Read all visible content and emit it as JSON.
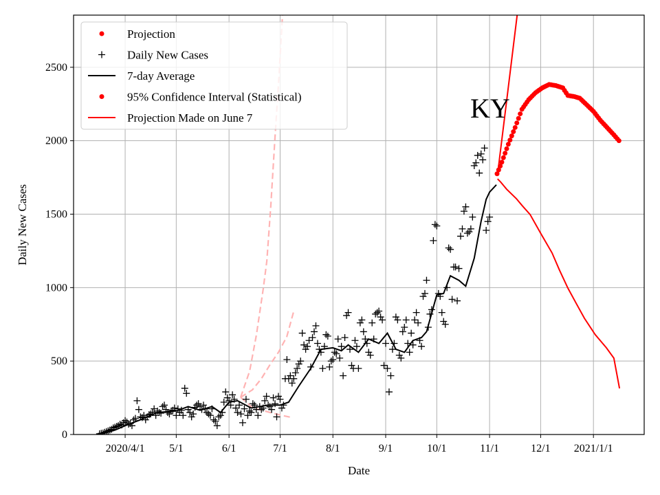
{
  "chart_data": {
    "type": "scatter",
    "title": "",
    "state_label": "KY",
    "xlabel": "Date",
    "ylabel": "Daily New Cases",
    "x_units": "days since 2020-01-01",
    "xlim": [
      60.7,
      395.8
    ],
    "ylim": [
      0,
      2855
    ],
    "grid": true,
    "legend_placement": "top-left",
    "x_ticks": [
      {
        "label": "2020/4/1",
        "day": 91
      },
      {
        "label": "5/1",
        "day": 121
      },
      {
        "label": "6/1",
        "day": 152
      },
      {
        "label": "7/1",
        "day": 182
      },
      {
        "label": "8/1",
        "day": 213
      },
      {
        "label": "9/1",
        "day": 244
      },
      {
        "label": "10/1",
        "day": 274
      },
      {
        "label": "11/1",
        "day": 305
      },
      {
        "label": "12/1",
        "day": 335
      },
      {
        "label": "2021/1/1",
        "day": 366
      }
    ],
    "y_ticks": [
      0,
      500,
      1000,
      1500,
      2000,
      2500
    ],
    "legend": [
      {
        "label": "Projection",
        "marker": "dot",
        "color": "#ff0000"
      },
      {
        "label": "Daily New Cases",
        "marker": "plus",
        "color": "#000000"
      },
      {
        "label": "7-day Average",
        "marker": "line",
        "color": "#000000"
      },
      {
        "label": "95% Confidence Interval (Statistical)",
        "marker": "dot",
        "color": "#ff0000"
      },
      {
        "label": "Projection Made on June 7",
        "marker": "line",
        "color": "#ff0000"
      }
    ],
    "series": [
      {
        "name": "Daily New Cases",
        "color": "#000000",
        "start_day": 76,
        "values": [
          5,
          8,
          10,
          15,
          20,
          25,
          30,
          35,
          45,
          50,
          55,
          60,
          70,
          65,
          80,
          95,
          85,
          70,
          75,
          60,
          100,
          110,
          230,
          170,
          120,
          115,
          130,
          100,
          120,
          135,
          140,
          150,
          175,
          130,
          160,
          150,
          145,
          190,
          200,
          170,
          150,
          140,
          160,
          165,
          180,
          130,
          175,
          150,
          165,
          130,
          315,
          280,
          170,
          150,
          120,
          140,
          185,
          200,
          210,
          190,
          170,
          200,
          175,
          150,
          140,
          130,
          175,
          100,
          90,
          60,
          120,
          130,
          150,
          220,
          290,
          250,
          230,
          200,
          270,
          240,
          180,
          150,
          200,
          140,
          80,
          175,
          240,
          130,
          160,
          150,
          210,
          200,
          170,
          130,
          190,
          170,
          180,
          230,
          260,
          200,
          190,
          170,
          250,
          210,
          120,
          260,
          240,
          180,
          200,
          380,
          510,
          380,
          400,
          350,
          380,
          420,
          450,
          480,
          500,
          690,
          610,
          580,
          600,
          640,
          460,
          660,
          700,
          740,
          620,
          580,
          560,
          450,
          600,
          680,
          670,
          460,
          500,
          510,
          560,
          550,
          650,
          520,
          600,
          400,
          660,
          810,
          830,
          580,
          470,
          450,
          640,
          600,
          450,
          760,
          780,
          700,
          650,
          620,
          560,
          540,
          760,
          650,
          820,
          830,
          840,
          800,
          780,
          470,
          620,
          450,
          290,
          400,
          580,
          620,
          800,
          780,
          540,
          520,
          700,
          730,
          780,
          620,
          560,
          690,
          610,
          780,
          830,
          760,
          640,
          600,
          940,
          960,
          1050,
          730,
          820,
          850,
          1320,
          1430,
          1420,
          960,
          940,
          830,
          770,
          750,
          1000,
          1270,
          1260,
          920,
          1140,
          1140,
          910,
          1130,
          1350,
          1400,
          1520,
          1550,
          1370,
          1380,
          1400,
          1480,
          1830,
          1850,
          1900,
          1780,
          1910,
          1870,
          1950,
          1390,
          1450,
          1480
        ]
      },
      {
        "name": "7-day Average",
        "color": "#000000",
        "points": [
          [
            76,
            0
          ],
          [
            85,
            30
          ],
          [
            91,
            60
          ],
          [
            100,
            100
          ],
          [
            110,
            150
          ],
          [
            121,
            160
          ],
          [
            128,
            190
          ],
          [
            135,
            165
          ],
          [
            142,
            190
          ],
          [
            147,
            150
          ],
          [
            152,
            220
          ],
          [
            157,
            230
          ],
          [
            165,
            180
          ],
          [
            175,
            200
          ],
          [
            182,
            200
          ],
          [
            187,
            220
          ],
          [
            193,
            330
          ],
          [
            200,
            450
          ],
          [
            206,
            580
          ],
          [
            213,
            590
          ],
          [
            218,
            570
          ],
          [
            222,
            610
          ],
          [
            228,
            560
          ],
          [
            234,
            650
          ],
          [
            240,
            620
          ],
          [
            245,
            690
          ],
          [
            250,
            580
          ],
          [
            255,
            560
          ],
          [
            260,
            640
          ],
          [
            265,
            660
          ],
          [
            268,
            700
          ],
          [
            274,
            950
          ],
          [
            278,
            960
          ],
          [
            282,
            1080
          ],
          [
            287,
            1050
          ],
          [
            291,
            1010
          ],
          [
            296,
            1200
          ],
          [
            300,
            1450
          ],
          [
            303,
            1600
          ],
          [
            305,
            1650
          ],
          [
            309,
            1700
          ]
        ]
      },
      {
        "name": "Projection",
        "color": "#ff0000",
        "points": [
          [
            309.4,
            1775
          ],
          [
            312.2,
            1854
          ],
          [
            316,
            1976
          ],
          [
            320,
            2090
          ],
          [
            324,
            2214
          ],
          [
            328,
            2280
          ],
          [
            332,
            2327
          ],
          [
            336,
            2360
          ],
          [
            340,
            2383
          ],
          [
            344,
            2375
          ],
          [
            348,
            2360
          ],
          [
            351,
            2308
          ],
          [
            355,
            2300
          ],
          [
            358,
            2289
          ],
          [
            362,
            2245
          ],
          [
            366,
            2200
          ],
          [
            370,
            2140
          ],
          [
            374,
            2090
          ],
          [
            378,
            2040
          ],
          [
            381,
            2000
          ]
        ]
      },
      {
        "name": "95% Confidence Interval (Statistical) upper",
        "color": "#ff0000",
        "points": [
          [
            309.7,
            1770
          ],
          [
            315,
            2270
          ],
          [
            321.1,
            2846
          ],
          [
            323,
            3030
          ]
        ]
      },
      {
        "name": "95% Confidence Interval (Statistical) lower",
        "color": "#ff0000",
        "points": [
          [
            309.7,
            1740
          ],
          [
            311.4,
            1720
          ],
          [
            315,
            1670
          ],
          [
            320.7,
            1606
          ],
          [
            324,
            1560
          ],
          [
            328.8,
            1498
          ],
          [
            335,
            1370
          ],
          [
            341.7,
            1236
          ],
          [
            346,
            1120
          ],
          [
            351,
            997
          ],
          [
            356,
            890
          ],
          [
            360.7,
            791
          ],
          [
            367,
            680
          ],
          [
            373.6,
            590
          ],
          [
            378,
            520
          ],
          [
            382.9,
            459
          ],
          [
            385,
            430
          ],
          [
            390,
            370
          ],
          [
            393,
            330
          ],
          [
            381.3,
            314
          ]
        ]
      },
      {
        "name": "Projection Made on June 7 (upper)",
        "color": "#ffb3b3",
        "points": [
          [
            158.8,
            253
          ],
          [
            164.1,
            431
          ],
          [
            168.1,
            679
          ],
          [
            172.1,
            992
          ],
          [
            174.2,
            1180
          ],
          [
            176.5,
            1550
          ],
          [
            179,
            2022
          ],
          [
            181.3,
            2430
          ],
          [
            183.4,
            2856
          ]
        ]
      },
      {
        "name": "Projection Made on June 7 (middle)",
        "color": "#ffb3b3",
        "points": [
          [
            158.8,
            253
          ],
          [
            165.7,
            304
          ],
          [
            171,
            380
          ],
          [
            176.2,
            478
          ],
          [
            181,
            560
          ],
          [
            185.9,
            665
          ],
          [
            190.3,
            852
          ]
        ]
      },
      {
        "name": "Projection Made on June 7 (lower)",
        "color": "#ffb3b3",
        "points": [
          [
            158.8,
            253
          ],
          [
            165.7,
            183
          ],
          [
            171,
            165
          ],
          [
            176.2,
            150
          ],
          [
            182,
            133
          ],
          [
            188.3,
            117
          ]
        ]
      }
    ]
  }
}
